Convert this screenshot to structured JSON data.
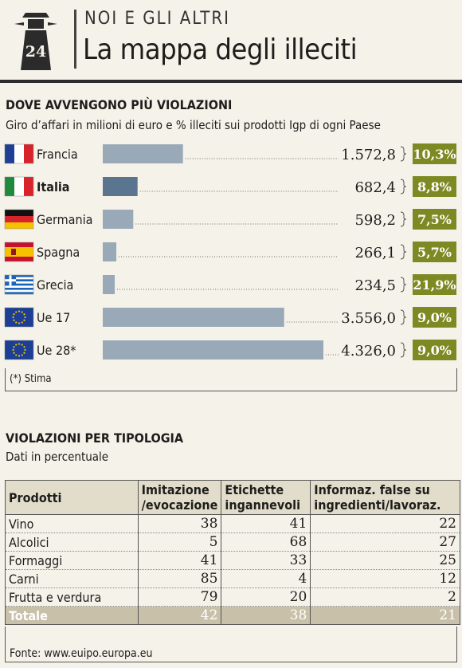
{
  "header": {
    "badge_number": "24",
    "section": "NOI E GLI ALTRI",
    "headline": "La mappa degli illeciti"
  },
  "section1": {
    "title": "DOVE AVVENGONO PIÙ VIOLAZIONI",
    "subtitle": "Giro d’affari in milioni di euro e % illeciti sui prodotti Igp di ogni Paese",
    "note": "(*) Stima"
  },
  "chart_data": {
    "type": "bar",
    "orientation": "horizontal",
    "categories": [
      "Francia",
      "Italia",
      "Germania",
      "Spagna",
      "Grecia",
      "Ue 17",
      "Ue 28*"
    ],
    "values": [
      1572.8,
      682.4,
      598.2,
      266.1,
      234.5,
      3556.0,
      4326.0
    ],
    "value_labels": [
      "1.572,8",
      "682,4",
      "598,2",
      "266,1",
      "234,5",
      "3.556,0",
      "4.326,0"
    ],
    "percent_labels": [
      "10,3%",
      "8,8%",
      "7,5%",
      "5,7%",
      "21,9%",
      "9,0%",
      "9,0%"
    ],
    "percent_values": [
      10.3,
      8.8,
      7.5,
      5.7,
      21.9,
      9.0,
      9.0
    ],
    "flags": [
      "flag-france",
      "flag-italy",
      "flag-germany",
      "flag-spain",
      "flag-greece",
      "flag-eu",
      "flag-eu"
    ],
    "highlighted_category": "Italia",
    "xlim": [
      0,
      4326
    ],
    "colors": {
      "bar": "#9aa9b7",
      "bar_highlight": "#5a7590",
      "percent_badge": "#7d8a23"
    }
  },
  "section2": {
    "title": "VIOLAZIONI PER TIPOLOGIA",
    "subtitle": "Dati in percentuale"
  },
  "table": {
    "headers": [
      "Prodotti",
      "Imitazione /evocazione",
      "Etichette ingannevoli",
      "Informaz. false su ingredienti/lavoraz."
    ],
    "rows": [
      [
        "Vino",
        "38",
        "41",
        "22"
      ],
      [
        "Alcolici",
        "5",
        "68",
        "27"
      ],
      [
        "Formaggi",
        "41",
        "33",
        "25"
      ],
      [
        "Carni",
        "85",
        "4",
        "12"
      ],
      [
        "Frutta e verdura",
        "79",
        "20",
        "2"
      ]
    ],
    "total": [
      "Totale",
      "42",
      "38",
      "21"
    ]
  },
  "source": "Fonte: www.euipo.europa.eu"
}
